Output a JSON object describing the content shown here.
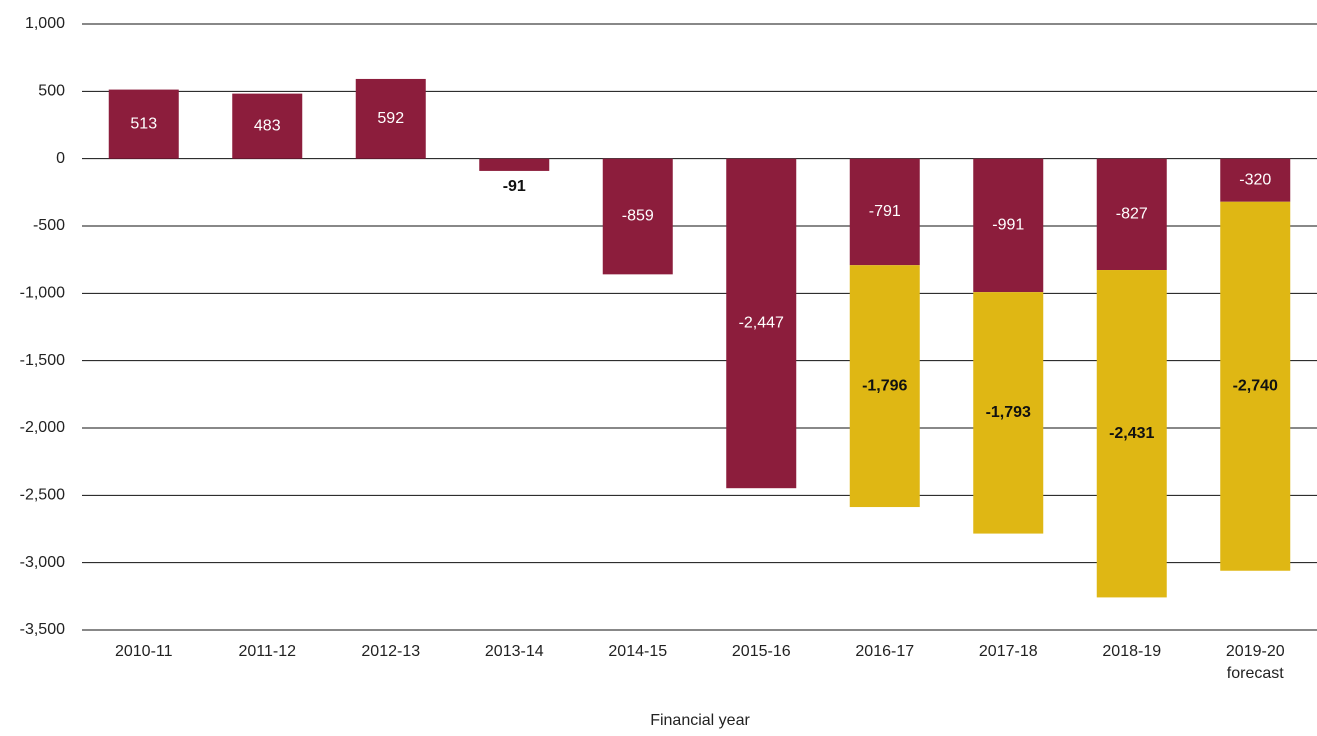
{
  "chart_data": {
    "type": "stacked_bar",
    "x_label": "Financial year",
    "categories": [
      "2010-11",
      "2011-12",
      "2012-13",
      "2013-14",
      "2014-15",
      "2015-16",
      "2016-17",
      "2017-18",
      "2018-19",
      "2019-20\nforecast"
    ],
    "series": [
      {
        "color": "#8c1d3c",
        "values": [
          513,
          483,
          592,
          -91,
          -859,
          -2447,
          -791,
          -991,
          -827,
          -320
        ],
        "value_labels": [
          "513",
          "483",
          "592",
          "-91",
          "-859",
          "-2,447",
          "-791",
          "-991",
          "-827",
          "-320"
        ]
      },
      {
        "color": "#dfb714",
        "values": [
          null,
          null,
          null,
          null,
          null,
          null,
          -1796,
          -1793,
          -2431,
          -2740
        ],
        "value_labels": [
          null,
          null,
          null,
          null,
          null,
          null,
          "-1,796",
          "-1,793",
          "-2,431",
          "-2,740"
        ]
      }
    ],
    "ylim": [
      -3500,
      1000
    ],
    "yticks": [
      {
        "value": 1000,
        "label": "1,000"
      },
      500,
      0,
      -500,
      {
        "value": -1000,
        "label": "-1,000"
      },
      {
        "value": -1500,
        "label": "-1,500"
      },
      {
        "value": -2000,
        "label": "-2,000"
      },
      {
        "value": -2500,
        "label": "-2,500"
      },
      {
        "value": -3000,
        "label": "-3,000"
      },
      {
        "value": -3500,
        "label": "-3,500"
      }
    ],
    "grid": true
  }
}
